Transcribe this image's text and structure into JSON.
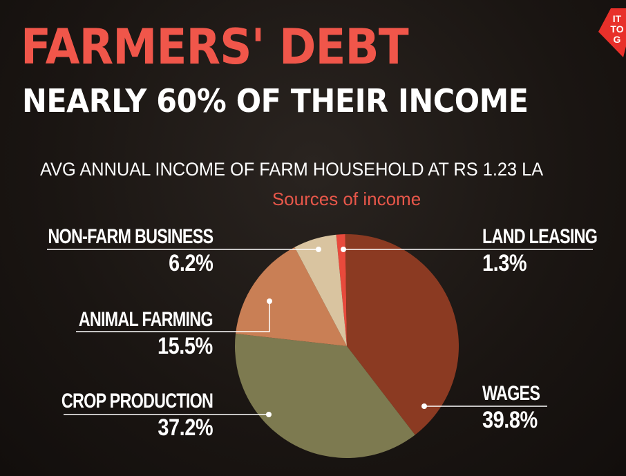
{
  "header": {
    "title": "FARMERS' DEBT",
    "subtitle": "NEARLY 60% OF THEIR INCOME",
    "headline": "AVG ANNUAL INCOME OF FARM HOUSEHOLD AT RS 1.23 LA",
    "logo_text": "IT TO G"
  },
  "colors": {
    "title": "#f0564a",
    "accent": "#e8574a",
    "wages": "#8b3a22",
    "crop_production": "#7d7a50",
    "animal_farming": "#c97f55",
    "non_farm_business": "#d9c4a0",
    "land_leasing": "#e84a3c",
    "background": "#1a1512"
  },
  "chart_data": {
    "type": "pie",
    "subtitle": "Sources of income",
    "slices": [
      {
        "label": "LAND LEASING",
        "value": 1.3,
        "value_label": "1.3%"
      },
      {
        "label": "WAGES",
        "value": 39.8,
        "value_label": "39.8%"
      },
      {
        "label": "CROP PRODUCTION",
        "value": 37.2,
        "value_label": "37.2%"
      },
      {
        "label": "ANIMAL FARMING",
        "value": 15.5,
        "value_label": "15.5%"
      },
      {
        "label": "NON-FARM BUSINESS",
        "value": 6.2,
        "value_label": "6.2%"
      }
    ],
    "legend": "callout labels"
  }
}
